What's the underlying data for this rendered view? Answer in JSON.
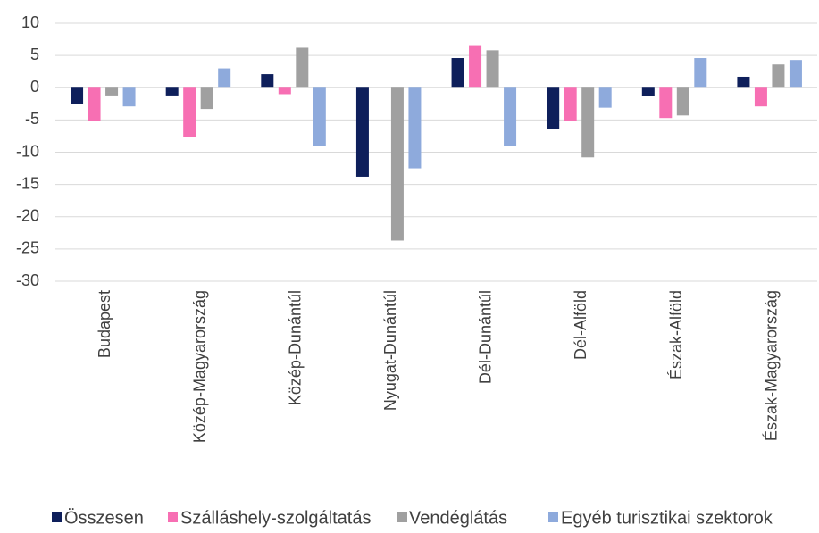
{
  "chart_data": {
    "type": "bar",
    "categories": [
      "Budapest",
      "Közép-Magyarország",
      "Közép-Dunántúl",
      "Nyugat-Dunántúl",
      "Dél-Dunántúl",
      "Dél-Alföld",
      "Észak-Alföld",
      "Észak-Magyarország"
    ],
    "series": [
      {
        "name": "Összesen",
        "color": "#0e1f5b",
        "values": [
          -2.5,
          -1.2,
          2.1,
          -13.8,
          4.6,
          -6.4,
          -1.3,
          1.7
        ]
      },
      {
        "name": "Szálláshely-szolgáltatás",
        "color": "#f76fb3",
        "values": [
          -5.2,
          -7.7,
          -1.0,
          0,
          6.6,
          -5.1,
          -4.7,
          -2.9
        ]
      },
      {
        "name": "Vendéglátás",
        "color": "#a0a0a0",
        "values": [
          -1.2,
          -3.3,
          6.2,
          -23.7,
          5.8,
          -10.8,
          -4.3,
          3.6
        ]
      },
      {
        "name": "Egyéb turisztikai szektorok",
        "color": "#8eaadc",
        "values": [
          -2.9,
          3.0,
          -9.0,
          -12.5,
          -9.1,
          -3.1,
          4.6,
          4.3
        ]
      }
    ],
    "ylim": [
      -30,
      10
    ],
    "yticks": [
      -30,
      -25,
      -20,
      -15,
      -10,
      -5,
      0,
      5,
      10
    ],
    "grid": true,
    "legend": "bottom"
  }
}
